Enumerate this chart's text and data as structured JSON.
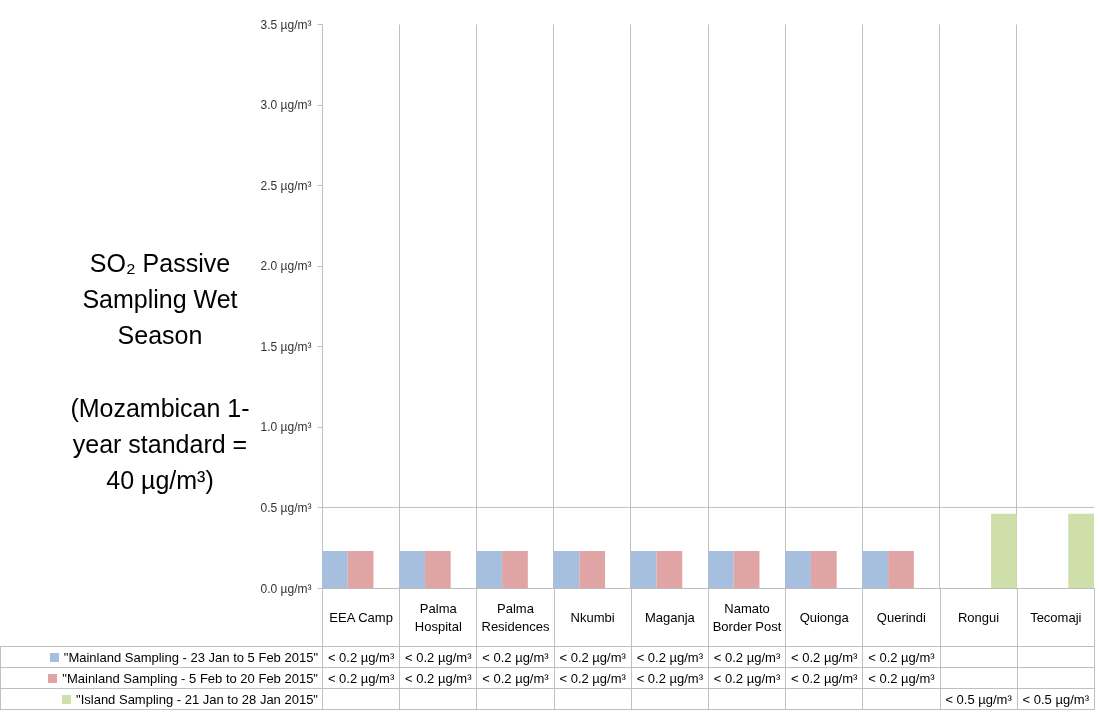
{
  "chart_data": {
    "type": "bar",
    "title": "SO₂ Passive Sampling Wet Season",
    "subtitle": "(Mozambican 1-year standard = 40 µg/m³)",
    "categories": [
      "EEA Camp",
      "Palma Hospital",
      "Palma Residences",
      "Nkumbi",
      "Maganja",
      "Namato Border Post",
      "Quionga",
      "Querindi",
      "Rongui",
      "Tecomaji"
    ],
    "series": [
      {
        "name": "\"Mainland Sampling - 23 Jan to 5 Feb 2015\"",
        "color": "#a7bfdf",
        "values": [
          0.23,
          0.23,
          0.23,
          0.23,
          0.23,
          0.23,
          0.23,
          0.23,
          null,
          null
        ],
        "value_labels": [
          "< 0.2 µg/m³",
          "< 0.2 µg/m³",
          "< 0.2 µg/m³",
          "< 0.2 µg/m³",
          "< 0.2 µg/m³",
          "< 0.2 µg/m³",
          "< 0.2 µg/m³",
          "< 0.2 µg/m³",
          null,
          null
        ]
      },
      {
        "name": "\"Mainland Sampling - 5 Feb to 20 Feb 2015\"",
        "color": "#e0a4a4",
        "values": [
          0.23,
          0.23,
          0.23,
          0.23,
          0.23,
          0.23,
          0.23,
          0.23,
          null,
          null
        ],
        "value_labels": [
          "< 0.2 µg/m³",
          "< 0.2 µg/m³",
          "< 0.2 µg/m³",
          "< 0.2 µg/m³",
          "< 0.2 µg/m³",
          "< 0.2 µg/m³",
          "< 0.2 µg/m³",
          "< 0.2 µg/m³",
          null,
          null
        ]
      },
      {
        "name": "\"Island Sampling - 21 Jan to 28 Jan 2015\"",
        "color": "#cfdfaa",
        "values": [
          null,
          null,
          null,
          null,
          null,
          null,
          null,
          null,
          0.46,
          0.46
        ],
        "value_labels": [
          null,
          null,
          null,
          null,
          null,
          null,
          null,
          null,
          "< 0.5 µg/m³",
          "< 0.5 µg/m³"
        ]
      }
    ],
    "ylim": [
      0,
      3.5
    ],
    "yticks": [
      {
        "value": 0,
        "label": "0.0 µg/m³"
      },
      {
        "value": 0.5,
        "label": "0.5 µg/m³"
      },
      {
        "value": 1,
        "label": "1.0 µg/m³"
      },
      {
        "value": 1.5,
        "label": "1.5 µg/m³"
      },
      {
        "value": 2,
        "label": "2.0 µg/m³"
      },
      {
        "value": 2.5,
        "label": "2.5 µg/m³"
      },
      {
        "value": 3,
        "label": "3.0 µg/m³"
      },
      {
        "value": 3.5,
        "label": "3.5 µg/m³"
      }
    ],
    "ref_lines": [
      {
        "axis": "y",
        "value": 0.5,
        "color": "#bfbfbf"
      }
    ],
    "grid": "x",
    "legend": "bottom"
  }
}
